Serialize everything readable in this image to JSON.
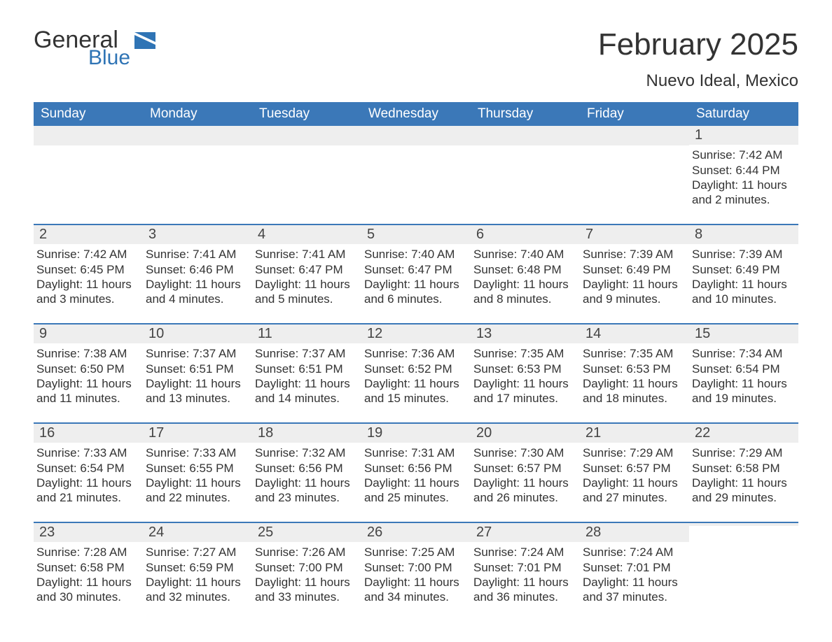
{
  "logo": {
    "word1": "General",
    "word2": "Blue"
  },
  "title": "February 2025",
  "location": "Nuevo Ideal, Mexico",
  "colors": {
    "header_bg": "#3b78b8",
    "header_text": "#ffffff",
    "daynum_bg": "#eeeeee",
    "row_divider": "#3b78b8",
    "brand_blue": "#2f74b5",
    "text": "#333333",
    "background": "#ffffff"
  },
  "day_names": [
    "Sunday",
    "Monday",
    "Tuesday",
    "Wednesday",
    "Thursday",
    "Friday",
    "Saturday"
  ],
  "weeks": [
    [
      {
        "day": "",
        "sunrise": "",
        "sunset": "",
        "daylight": ""
      },
      {
        "day": "",
        "sunrise": "",
        "sunset": "",
        "daylight": ""
      },
      {
        "day": "",
        "sunrise": "",
        "sunset": "",
        "daylight": ""
      },
      {
        "day": "",
        "sunrise": "",
        "sunset": "",
        "daylight": ""
      },
      {
        "day": "",
        "sunrise": "",
        "sunset": "",
        "daylight": ""
      },
      {
        "day": "",
        "sunrise": "",
        "sunset": "",
        "daylight": ""
      },
      {
        "day": "1",
        "sunrise": "Sunrise: 7:42 AM",
        "sunset": "Sunset: 6:44 PM",
        "daylight": "Daylight: 11 hours and 2 minutes."
      }
    ],
    [
      {
        "day": "2",
        "sunrise": "Sunrise: 7:42 AM",
        "sunset": "Sunset: 6:45 PM",
        "daylight": "Daylight: 11 hours and 3 minutes."
      },
      {
        "day": "3",
        "sunrise": "Sunrise: 7:41 AM",
        "sunset": "Sunset: 6:46 PM",
        "daylight": "Daylight: 11 hours and 4 minutes."
      },
      {
        "day": "4",
        "sunrise": "Sunrise: 7:41 AM",
        "sunset": "Sunset: 6:47 PM",
        "daylight": "Daylight: 11 hours and 5 minutes."
      },
      {
        "day": "5",
        "sunrise": "Sunrise: 7:40 AM",
        "sunset": "Sunset: 6:47 PM",
        "daylight": "Daylight: 11 hours and 6 minutes."
      },
      {
        "day": "6",
        "sunrise": "Sunrise: 7:40 AM",
        "sunset": "Sunset: 6:48 PM",
        "daylight": "Daylight: 11 hours and 8 minutes."
      },
      {
        "day": "7",
        "sunrise": "Sunrise: 7:39 AM",
        "sunset": "Sunset: 6:49 PM",
        "daylight": "Daylight: 11 hours and 9 minutes."
      },
      {
        "day": "8",
        "sunrise": "Sunrise: 7:39 AM",
        "sunset": "Sunset: 6:49 PM",
        "daylight": "Daylight: 11 hours and 10 minutes."
      }
    ],
    [
      {
        "day": "9",
        "sunrise": "Sunrise: 7:38 AM",
        "sunset": "Sunset: 6:50 PM",
        "daylight": "Daylight: 11 hours and 11 minutes."
      },
      {
        "day": "10",
        "sunrise": "Sunrise: 7:37 AM",
        "sunset": "Sunset: 6:51 PM",
        "daylight": "Daylight: 11 hours and 13 minutes."
      },
      {
        "day": "11",
        "sunrise": "Sunrise: 7:37 AM",
        "sunset": "Sunset: 6:51 PM",
        "daylight": "Daylight: 11 hours and 14 minutes."
      },
      {
        "day": "12",
        "sunrise": "Sunrise: 7:36 AM",
        "sunset": "Sunset: 6:52 PM",
        "daylight": "Daylight: 11 hours and 15 minutes."
      },
      {
        "day": "13",
        "sunrise": "Sunrise: 7:35 AM",
        "sunset": "Sunset: 6:53 PM",
        "daylight": "Daylight: 11 hours and 17 minutes."
      },
      {
        "day": "14",
        "sunrise": "Sunrise: 7:35 AM",
        "sunset": "Sunset: 6:53 PM",
        "daylight": "Daylight: 11 hours and 18 minutes."
      },
      {
        "day": "15",
        "sunrise": "Sunrise: 7:34 AM",
        "sunset": "Sunset: 6:54 PM",
        "daylight": "Daylight: 11 hours and 19 minutes."
      }
    ],
    [
      {
        "day": "16",
        "sunrise": "Sunrise: 7:33 AM",
        "sunset": "Sunset: 6:54 PM",
        "daylight": "Daylight: 11 hours and 21 minutes."
      },
      {
        "day": "17",
        "sunrise": "Sunrise: 7:33 AM",
        "sunset": "Sunset: 6:55 PM",
        "daylight": "Daylight: 11 hours and 22 minutes."
      },
      {
        "day": "18",
        "sunrise": "Sunrise: 7:32 AM",
        "sunset": "Sunset: 6:56 PM",
        "daylight": "Daylight: 11 hours and 23 minutes."
      },
      {
        "day": "19",
        "sunrise": "Sunrise: 7:31 AM",
        "sunset": "Sunset: 6:56 PM",
        "daylight": "Daylight: 11 hours and 25 minutes."
      },
      {
        "day": "20",
        "sunrise": "Sunrise: 7:30 AM",
        "sunset": "Sunset: 6:57 PM",
        "daylight": "Daylight: 11 hours and 26 minutes."
      },
      {
        "day": "21",
        "sunrise": "Sunrise: 7:29 AM",
        "sunset": "Sunset: 6:57 PM",
        "daylight": "Daylight: 11 hours and 27 minutes."
      },
      {
        "day": "22",
        "sunrise": "Sunrise: 7:29 AM",
        "sunset": "Sunset: 6:58 PM",
        "daylight": "Daylight: 11 hours and 29 minutes."
      }
    ],
    [
      {
        "day": "23",
        "sunrise": "Sunrise: 7:28 AM",
        "sunset": "Sunset: 6:58 PM",
        "daylight": "Daylight: 11 hours and 30 minutes."
      },
      {
        "day": "24",
        "sunrise": "Sunrise: 7:27 AM",
        "sunset": "Sunset: 6:59 PM",
        "daylight": "Daylight: 11 hours and 32 minutes."
      },
      {
        "day": "25",
        "sunrise": "Sunrise: 7:26 AM",
        "sunset": "Sunset: 7:00 PM",
        "daylight": "Daylight: 11 hours and 33 minutes."
      },
      {
        "day": "26",
        "sunrise": "Sunrise: 7:25 AM",
        "sunset": "Sunset: 7:00 PM",
        "daylight": "Daylight: 11 hours and 34 minutes."
      },
      {
        "day": "27",
        "sunrise": "Sunrise: 7:24 AM",
        "sunset": "Sunset: 7:01 PM",
        "daylight": "Daylight: 11 hours and 36 minutes."
      },
      {
        "day": "28",
        "sunrise": "Sunrise: 7:24 AM",
        "sunset": "Sunset: 7:01 PM",
        "daylight": "Daylight: 11 hours and 37 minutes."
      },
      {
        "day": "",
        "sunrise": "",
        "sunset": "",
        "daylight": ""
      }
    ]
  ]
}
